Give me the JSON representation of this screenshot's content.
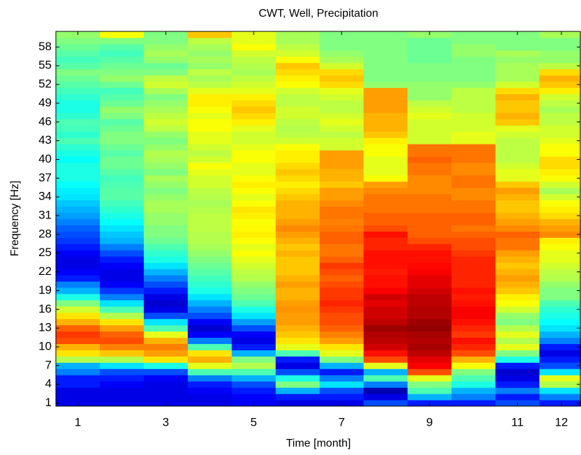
{
  "chart_data": {
    "type": "heatmap",
    "title": "CWT, Well, Precipitation",
    "xlabel": "Time [month]",
    "ylabel": "Frequency [Hz]",
    "x": [
      1,
      2,
      3,
      4,
      5,
      6,
      7,
      8,
      9,
      10,
      11,
      12
    ],
    "y": [
      1,
      2,
      3,
      4,
      5,
      6,
      7,
      8,
      9,
      10,
      11,
      12,
      13,
      14,
      15,
      16,
      17,
      18,
      19,
      20,
      21,
      22,
      23,
      24,
      25,
      26,
      27,
      28,
      29,
      30,
      31,
      32,
      33,
      34,
      35,
      36,
      37,
      38,
      39,
      40,
      41,
      42,
      43,
      44,
      45,
      46,
      47,
      48,
      49,
      50,
      51,
      52,
      53,
      54,
      55,
      56,
      57,
      58,
      59,
      60
    ],
    "colormap": "jet",
    "zlim": [
      0,
      100
    ],
    "z": [
      [
        10,
        10,
        10,
        15,
        15,
        25,
        30,
        55,
        65,
        70,
        80,
        82,
        78,
        70,
        65,
        58,
        50,
        40,
        30,
        25,
        15,
        12,
        10,
        10,
        12,
        15,
        18,
        20,
        22,
        25,
        28,
        30,
        32,
        35,
        36,
        38,
        40,
        40,
        40,
        38,
        40,
        42,
        45,
        42,
        44,
        45,
        42,
        40,
        40,
        42,
        44,
        46,
        48,
        50,
        46,
        44,
        46,
        48,
        50,
        52
      ],
      [
        10,
        10,
        10,
        12,
        15,
        20,
        35,
        55,
        68,
        75,
        80,
        78,
        72,
        65,
        55,
        45,
        35,
        25,
        18,
        12,
        10,
        10,
        12,
        15,
        20,
        25,
        30,
        32,
        35,
        38,
        40,
        42,
        44,
        46,
        46,
        45,
        44,
        46,
        48,
        48,
        46,
        48,
        50,
        50,
        48,
        46,
        50,
        52,
        48,
        46,
        44,
        48,
        52,
        50,
        48,
        46,
        44,
        46,
        50,
        62
      ],
      [
        10,
        10,
        10,
        10,
        12,
        20,
        40,
        65,
        72,
        75,
        70,
        60,
        45,
        35,
        20,
        10,
        8,
        10,
        15,
        20,
        25,
        30,
        35,
        40,
        42,
        45,
        48,
        50,
        50,
        52,
        52,
        54,
        54,
        52,
        50,
        52,
        54,
        50,
        52,
        54,
        55,
        52,
        50,
        52,
        56,
        58,
        56,
        54,
        52,
        50,
        54,
        58,
        56,
        50,
        48,
        52,
        54,
        52,
        50,
        50
      ],
      [
        10,
        10,
        12,
        15,
        25,
        45,
        60,
        70,
        65,
        45,
        25,
        12,
        8,
        12,
        20,
        25,
        30,
        35,
        40,
        42,
        44,
        46,
        48,
        50,
        52,
        54,
        55,
        55,
        56,
        56,
        56,
        55,
        54,
        55,
        56,
        58,
        58,
        60,
        62,
        58,
        56,
        58,
        60,
        60,
        62,
        62,
        60,
        62,
        64,
        64,
        60,
        56,
        54,
        56,
        52,
        54,
        52,
        54,
        56,
        68
      ],
      [
        12,
        12,
        15,
        20,
        30,
        45,
        55,
        50,
        30,
        15,
        10,
        12,
        20,
        28,
        35,
        40,
        45,
        48,
        50,
        52,
        55,
        56,
        58,
        60,
        62,
        60,
        62,
        64,
        63,
        62,
        64,
        65,
        62,
        60,
        62,
        64,
        62,
        60,
        60,
        62,
        62,
        60,
        58,
        58,
        60,
        64,
        66,
        68,
        66,
        64,
        60,
        58,
        56,
        54,
        55,
        56,
        58,
        62,
        60,
        60
      ],
      [
        10,
        15,
        30,
        50,
        40,
        20,
        10,
        15,
        45,
        60,
        65,
        68,
        70,
        72,
        72,
        73,
        72,
        70,
        70,
        72,
        70,
        68,
        68,
        68,
        70,
        68,
        70,
        72,
        74,
        72,
        70,
        70,
        70,
        68,
        66,
        64,
        66,
        68,
        66,
        64,
        64,
        62,
        58,
        56,
        55,
        56,
        58,
        58,
        56,
        56,
        58,
        62,
        64,
        66,
        68,
        62,
        58,
        56,
        54,
        54
      ],
      [
        10,
        15,
        20,
        35,
        25,
        15,
        30,
        50,
        60,
        65,
        72,
        75,
        78,
        80,
        80,
        82,
        84,
        82,
        82,
        80,
        78,
        80,
        82,
        78,
        76,
        76,
        78,
        78,
        76,
        75,
        76,
        76,
        74,
        72,
        72,
        68,
        70,
        70,
        72,
        72,
        72,
        58,
        58,
        56,
        58,
        60,
        58,
        56,
        56,
        58,
        60,
        66,
        68,
        66,
        58,
        54,
        52,
        50,
        50,
        50
      ],
      [
        20,
        10,
        5,
        25,
        45,
        30,
        60,
        80,
        86,
        92,
        94,
        95,
        97,
        94,
        92,
        92,
        90,
        92,
        88,
        86,
        86,
        85,
        86,
        86,
        86,
        84,
        84,
        86,
        80,
        78,
        78,
        76,
        76,
        76,
        74,
        72,
        62,
        60,
        60,
        60,
        62,
        62,
        64,
        68,
        70,
        70,
        70,
        72,
        72,
        72,
        72,
        52,
        50,
        50,
        50,
        50,
        50,
        50,
        50,
        50
      ],
      [
        15,
        30,
        45,
        50,
        60,
        80,
        88,
        90,
        94,
        96,
        95,
        96,
        98,
        97,
        95,
        95,
        94,
        94,
        92,
        90,
        90,
        88,
        87,
        86,
        86,
        84,
        80,
        78,
        78,
        78,
        78,
        76,
        76,
        76,
        74,
        74,
        74,
        76,
        76,
        78,
        76,
        76,
        58,
        58,
        58,
        58,
        60,
        58,
        56,
        52,
        52,
        52,
        50,
        50,
        50,
        48,
        48,
        48,
        48,
        52
      ],
      [
        15,
        25,
        30,
        40,
        45,
        50,
        62,
        70,
        80,
        84,
        86,
        82,
        84,
        86,
        88,
        88,
        86,
        85,
        86,
        84,
        84,
        84,
        84,
        84,
        82,
        80,
        80,
        78,
        76,
        78,
        78,
        76,
        76,
        74,
        74,
        76,
        76,
        74,
        74,
        76,
        76,
        76,
        60,
        60,
        58,
        58,
        58,
        56,
        56,
        56,
        56,
        52,
        50,
        50,
        50,
        50,
        52,
        52,
        50,
        50
      ],
      [
        20,
        15,
        25,
        15,
        10,
        8,
        15,
        40,
        50,
        60,
        55,
        60,
        55,
        50,
        52,
        58,
        62,
        64,
        68,
        70,
        72,
        70,
        68,
        70,
        72,
        76,
        76,
        78,
        74,
        72,
        70,
        68,
        68,
        70,
        72,
        68,
        60,
        60,
        58,
        56,
        56,
        56,
        56,
        58,
        60,
        68,
        70,
        68,
        68,
        70,
        66,
        58,
        54,
        54,
        54,
        52,
        54,
        50,
        50,
        50
      ],
      [
        15,
        25,
        35,
        55,
        60,
        35,
        20,
        15,
        10,
        15,
        25,
        30,
        35,
        38,
        40,
        42,
        45,
        50,
        50,
        52,
        55,
        56,
        58,
        60,
        60,
        62,
        64,
        74,
        72,
        70,
        66,
        64,
        62,
        58,
        54,
        58,
        62,
        64,
        66,
        66,
        62,
        62,
        60,
        58,
        58,
        56,
        56,
        54,
        56,
        58,
        64,
        68,
        70,
        66,
        56,
        52,
        52,
        50,
        50,
        54
      ]
    ],
    "xlim": [
      0.5,
      12.43
    ],
    "ylim": [
      0.5,
      60.5
    ],
    "xticks": [
      1,
      3,
      5,
      7,
      9,
      11,
      12
    ],
    "yticks": [
      1,
      4,
      7,
      10,
      13,
      16,
      19,
      22,
      25,
      28,
      31,
      34,
      37,
      40,
      43,
      46,
      49,
      52,
      55,
      58
    ]
  }
}
